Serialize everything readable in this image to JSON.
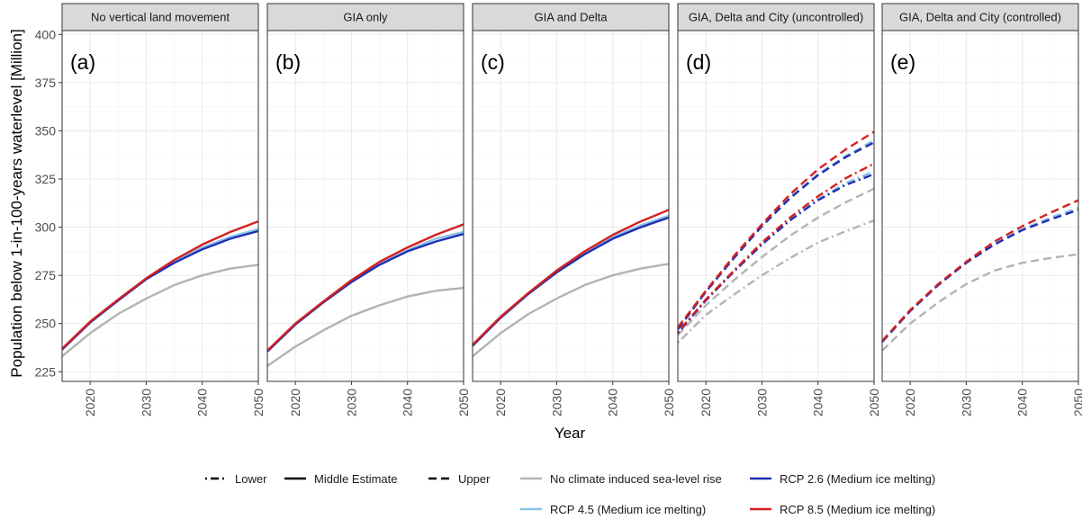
{
  "chart_data": {
    "type": "line",
    "xlabel": "Year",
    "ylabel": "Population below 1-in-100-years waterlevel [Million]",
    "xlim": [
      2015,
      2050
    ],
    "ylim": [
      220,
      402
    ],
    "x_ticks": [
      "2020",
      "2030",
      "2040",
      "2050"
    ],
    "y_ticks": [
      "225",
      "250",
      "275",
      "300",
      "325",
      "350",
      "375",
      "400"
    ],
    "x": [
      2015,
      2020,
      2025,
      2030,
      2035,
      2040,
      2045,
      2050
    ],
    "scenario_colors": {
      "No climate induced sea-level rise": "#b3b3b3",
      "RCP 2.6 (Medium ice melting)": "#1f2fb0",
      "RCP 4.5 (Medium ice melting)": "#8ec2ea",
      "RCP 8.5 (Medium ice melting)": "#d42020"
    },
    "panels": [
      {
        "strip": "No vertical land movement",
        "letter": "(a)",
        "series": [
          {
            "scenario": "No climate induced sea-level rise",
            "estimate": "Middle Estimate",
            "values": [
              233,
              245,
              255,
              263,
              270,
              275,
              278.5,
              280.5
            ]
          },
          {
            "scenario": "RCP 4.5 (Medium ice melting)",
            "estimate": "Middle Estimate",
            "values": [
              236.5,
              250.5,
              262,
              273,
              282,
              289.5,
              295,
              299
            ]
          },
          {
            "scenario": "RCP 2.6 (Medium ice melting)",
            "estimate": "Middle Estimate",
            "values": [
              236.5,
              250.5,
              262,
              273,
              281.5,
              288.5,
              294,
              298
            ]
          },
          {
            "scenario": "RCP 8.5 (Medium ice melting)",
            "estimate": "Middle Estimate",
            "values": [
              237,
              251,
              262.5,
              273.5,
              283,
              291,
              297.5,
              303
            ]
          }
        ]
      },
      {
        "strip": "GIA only",
        "letter": "(b)",
        "series": [
          {
            "scenario": "No climate induced sea-level rise",
            "estimate": "Middle Estimate",
            "values": [
              228,
              238,
              246.5,
              254,
              259.5,
              264,
              267,
              268.5
            ]
          },
          {
            "scenario": "RCP 4.5 (Medium ice melting)",
            "estimate": "Middle Estimate",
            "values": [
              235.5,
              249.5,
              261,
              272,
              281,
              288,
              294,
              297.5
            ]
          },
          {
            "scenario": "RCP 2.6 (Medium ice melting)",
            "estimate": "Middle Estimate",
            "values": [
              235.5,
              249.5,
              261,
              271.5,
              280.5,
              287.5,
              292.5,
              296.5
            ]
          },
          {
            "scenario": "RCP 8.5 (Medium ice melting)",
            "estimate": "Middle Estimate",
            "values": [
              236,
              250,
              261.5,
              272.5,
              282,
              289.5,
              296,
              301.5
            ]
          }
        ]
      },
      {
        "strip": "GIA and Delta",
        "letter": "(c)",
        "series": [
          {
            "scenario": "No climate induced sea-level rise",
            "estimate": "Middle Estimate",
            "values": [
              233,
              245,
              255,
              263,
              270,
              275,
              278.5,
              281
            ]
          },
          {
            "scenario": "RCP 4.5 (Medium ice melting)",
            "estimate": "Middle Estimate",
            "values": [
              238.5,
              253,
              265.5,
              277,
              286.5,
              295,
              301,
              306
            ]
          },
          {
            "scenario": "RCP 2.6 (Medium ice melting)",
            "estimate": "Middle Estimate",
            "values": [
              238.5,
              253,
              265.5,
              276.5,
              286,
              294,
              300,
              305
            ]
          },
          {
            "scenario": "RCP 8.5 (Medium ice melting)",
            "estimate": "Middle Estimate",
            "values": [
              239,
              253.5,
              266,
              277.5,
              287.5,
              296,
              303,
              309
            ]
          }
        ]
      },
      {
        "strip": "GIA, Delta and City (uncontrolled)",
        "letter": "(d)",
        "series": [
          {
            "scenario": "No climate induced sea-level rise",
            "estimate": "Lower",
            "values": [
              240,
              254.5,
              265,
              275,
              284,
              292,
              298,
              303.5
            ]
          },
          {
            "scenario": "No climate induced sea-level rise",
            "estimate": "Upper",
            "values": [
              244,
              259.5,
              272.5,
              284.5,
              295.5,
              305,
              313,
              320
            ]
          },
          {
            "scenario": "RCP 4.5 (Medium ice melting)",
            "estimate": "Lower",
            "values": [
              245,
              262,
              277,
              291,
              304,
              314.5,
              323,
              329
            ]
          },
          {
            "scenario": "RCP 4.5 (Medium ice melting)",
            "estimate": "Upper",
            "values": [
              247,
              266.5,
              284,
              300.5,
              315.5,
              327.5,
              337,
              345
            ]
          },
          {
            "scenario": "RCP 2.6 (Medium ice melting)",
            "estimate": "Lower",
            "values": [
              245,
              262,
              277,
              291,
              303.5,
              314,
              322,
              327.5
            ]
          },
          {
            "scenario": "RCP 2.6 (Medium ice melting)",
            "estimate": "Upper",
            "values": [
              247,
              266.5,
              284,
              300.5,
              315,
              327,
              336.5,
              344
            ]
          },
          {
            "scenario": "RCP 8.5 (Medium ice melting)",
            "estimate": "Lower",
            "values": [
              245.5,
              262.5,
              277.5,
              292,
              305,
              316,
              325.5,
              333
            ]
          },
          {
            "scenario": "RCP 8.5 (Medium ice melting)",
            "estimate": "Upper",
            "values": [
              248,
              267,
              285,
              301.5,
              317,
              330,
              340.5,
              349.5
            ]
          }
        ]
      },
      {
        "strip": "GIA, Delta and City (controlled)",
        "letter": "(e)",
        "series": [
          {
            "scenario": "No climate induced sea-level rise",
            "estimate": "Upper",
            "values": [
              236,
              250,
              261,
              270.5,
              277.5,
              281.5,
              284,
              286
            ]
          },
          {
            "scenario": "RCP 4.5 (Medium ice melting)",
            "estimate": "Upper",
            "values": [
              240.5,
              256.5,
              270,
              281.5,
              291.5,
              299,
              305,
              310
            ]
          },
          {
            "scenario": "RCP 2.6 (Medium ice melting)",
            "estimate": "Upper",
            "values": [
              240.5,
              256.5,
              270,
              281.5,
              291,
              298.5,
              304,
              309
            ]
          },
          {
            "scenario": "RCP 8.5 (Medium ice melting)",
            "estimate": "Upper",
            "values": [
              241,
              257,
              270.5,
              282,
              292.5,
              300.5,
              307.5,
              314
            ]
          }
        ]
      }
    ],
    "legend": {
      "placement": "bottom",
      "linetype_entries": [
        {
          "label": "Lower",
          "dash": "dotdash"
        },
        {
          "label": "Middle Estimate",
          "dash": "solid"
        },
        {
          "label": "Upper",
          "dash": "dashed"
        }
      ],
      "color_entries": [
        {
          "label": "No climate induced sea-level rise",
          "color": "#b3b3b3"
        },
        {
          "label": "RCP 2.6 (Medium ice melting)",
          "color": "#1f2fb0"
        },
        {
          "label": "RCP 4.5 (Medium ice melting)",
          "color": "#8ec2ea"
        },
        {
          "label": "RCP 8.5 (Medium ice melting)",
          "color": "#d42020"
        }
      ]
    },
    "grid": true
  }
}
